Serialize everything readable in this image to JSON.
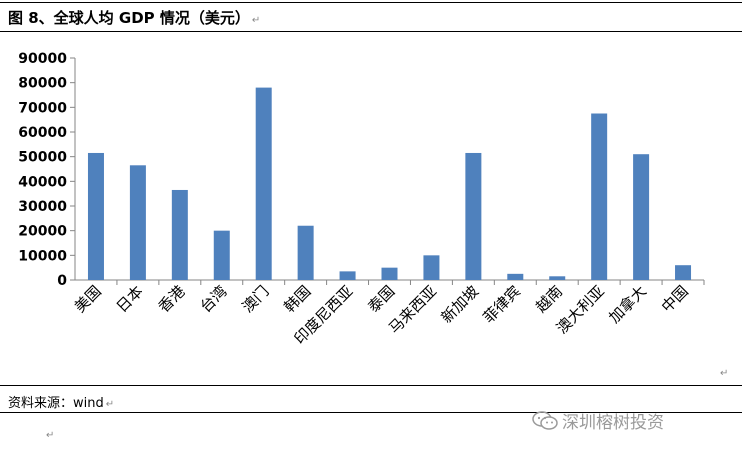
{
  "caption": {
    "title": "图 8、全球人均 GDP 情况（美元）"
  },
  "source": {
    "text": "资料来源：wind"
  },
  "watermark": {
    "icon": "wechat-icon",
    "text": "深圳榕树投资"
  },
  "chart_data": {
    "type": "bar",
    "title": "",
    "xlabel": "",
    "ylabel": "",
    "ylim": [
      0,
      90000
    ],
    "yticks": [
      "0",
      "10000",
      "20000",
      "30000",
      "40000",
      "50000",
      "60000",
      "70000",
      "80000",
      "90000"
    ],
    "categories": [
      "美国",
      "日本",
      "香港",
      "台湾",
      "澳门",
      "韩国",
      "印度尼西亚",
      "泰国",
      "马来西亚",
      "新加坡",
      "菲律宾",
      "越南",
      "澳大利亚",
      "加拿大",
      "中国"
    ],
    "values": [
      51500,
      46500,
      36500,
      20000,
      78000,
      22000,
      3500,
      5000,
      10000,
      51500,
      2500,
      1500,
      67500,
      51000,
      6000
    ],
    "bar_color": "#4f81bd",
    "grid": false,
    "legend": "none"
  }
}
